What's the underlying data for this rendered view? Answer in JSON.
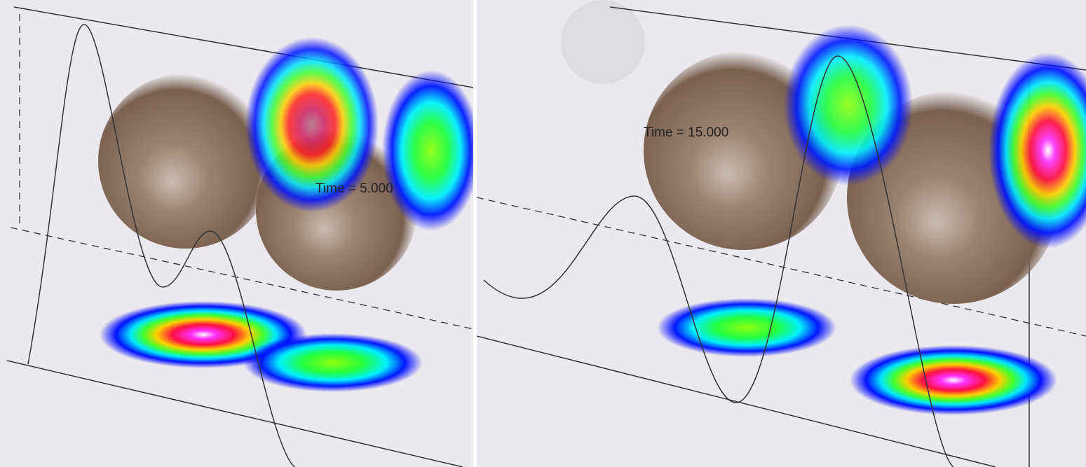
{
  "panels": [
    {
      "time_label": "Time = 5.000"
    },
    {
      "time_label": "Time = 15.000"
    }
  ]
}
